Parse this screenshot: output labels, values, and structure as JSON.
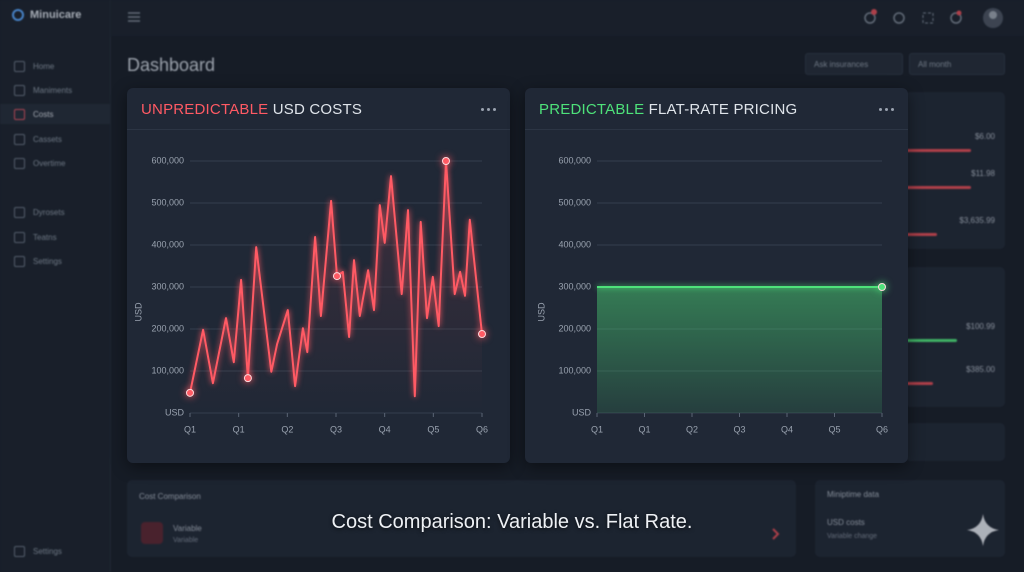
{
  "app": {
    "name": "Minuicare"
  },
  "sidebar": {
    "items": [
      "Home",
      "Maniments",
      "Costs",
      "Cassets",
      "Overtime",
      "Dyrosets",
      "Teatns",
      "Settings"
    ],
    "footer": "Settings"
  },
  "header": {
    "title": "Dashboard",
    "filters": [
      "Ask insurances",
      "All month"
    ]
  },
  "chart_data": [
    {
      "type": "line",
      "title_emphasis": "UNPREDICTABLE",
      "title": "USD COSTS",
      "ylabel": "USD",
      "color": "#ff5a64",
      "area": false,
      "x": [
        0,
        0.27,
        0.47,
        0.74,
        0.9,
        1.05,
        1.19,
        1.36,
        1.67,
        1.79,
        2.01,
        2.16,
        2.32,
        2.41,
        2.57,
        2.69,
        2.9,
        3.02,
        3.14,
        3.27,
        3.37,
        3.49,
        3.66,
        3.78,
        3.9,
        4.0,
        4.13,
        4.35,
        4.48,
        4.62,
        4.74,
        4.87,
        4.99,
        5.11,
        5.26,
        5.44,
        5.55,
        5.65,
        5.75,
        6.0
      ],
      "values": [
        48000,
        198000,
        71000,
        226000,
        121000,
        317000,
        83000,
        395000,
        98000,
        164000,
        245000,
        64000,
        202000,
        145000,
        419000,
        231000,
        505000,
        326000,
        336000,
        181000,
        364000,
        231000,
        340000,
        245000,
        495000,
        405000,
        564000,
        283000,
        483000,
        40000,
        455000,
        226000,
        324000,
        207000,
        600000,
        283000,
        336000,
        279000,
        460000,
        188000
      ],
      "marker_indices": [
        0,
        6,
        17,
        34,
        39
      ],
      "xlim": [
        0,
        6
      ],
      "ylim": [
        0,
        600000
      ],
      "xticks": [
        {
          "value": 0,
          "label": "Q1"
        },
        {
          "value": 1,
          "label": "Q1"
        },
        {
          "value": 2,
          "label": "Q2"
        },
        {
          "value": 3,
          "label": "Q3"
        },
        {
          "value": 4,
          "label": "Q4"
        },
        {
          "value": 5,
          "label": "Q5"
        },
        {
          "value": 6,
          "label": "Q6"
        }
      ],
      "yticks": [
        {
          "value": 0,
          "label": "USD"
        },
        {
          "value": 100000,
          "label": "100,000"
        },
        {
          "value": 200000,
          "label": "200,000"
        },
        {
          "value": 300000,
          "label": "300,000"
        },
        {
          "value": 400000,
          "label": "400,000"
        },
        {
          "value": 500000,
          "label": "500,000"
        },
        {
          "value": 600000,
          "label": "600,000"
        }
      ],
      "grid": true
    },
    {
      "type": "line",
      "title_emphasis": "PREDICTABLE",
      "title": "FLAT-RATE PRICING",
      "ylabel": "USD",
      "color": "#4ee27a",
      "area": true,
      "x": [
        0,
        6
      ],
      "values": [
        300000,
        300000
      ],
      "marker_indices": [
        1
      ],
      "xlim": [
        0,
        6
      ],
      "ylim": [
        0,
        600000
      ],
      "xticks": [
        {
          "value": 0,
          "label": "Q1"
        },
        {
          "value": 1,
          "label": "Q1"
        },
        {
          "value": 2,
          "label": "Q2"
        },
        {
          "value": 3,
          "label": "Q3"
        },
        {
          "value": 4,
          "label": "Q4"
        },
        {
          "value": 5,
          "label": "Q5"
        },
        {
          "value": 6,
          "label": "Q6"
        }
      ],
      "yticks": [
        {
          "value": 0,
          "label": "USD"
        },
        {
          "value": 100000,
          "label": "100,000"
        },
        {
          "value": 200000,
          "label": "200,000"
        },
        {
          "value": 300000,
          "label": "300,000"
        },
        {
          "value": 400000,
          "label": "400,000"
        },
        {
          "value": 500000,
          "label": "500,000"
        },
        {
          "value": 600000,
          "label": "600,000"
        }
      ],
      "grid": true
    }
  ],
  "side_cards": [
    {
      "rows": [
        "$6.00",
        "$11.98",
        "$3,635.99"
      ]
    },
    {
      "rows": [
        "$100.99",
        "$385.00"
      ]
    }
  ],
  "bottom": {
    "left": {
      "title": "Cost Comparison",
      "item": "Variable",
      "sub": "Variable"
    },
    "right": {
      "title": "Miniptime data",
      "item": "USD costs",
      "sub": "Variable change"
    }
  },
  "caption": "Cost Comparison: Variable vs. Flat Rate."
}
